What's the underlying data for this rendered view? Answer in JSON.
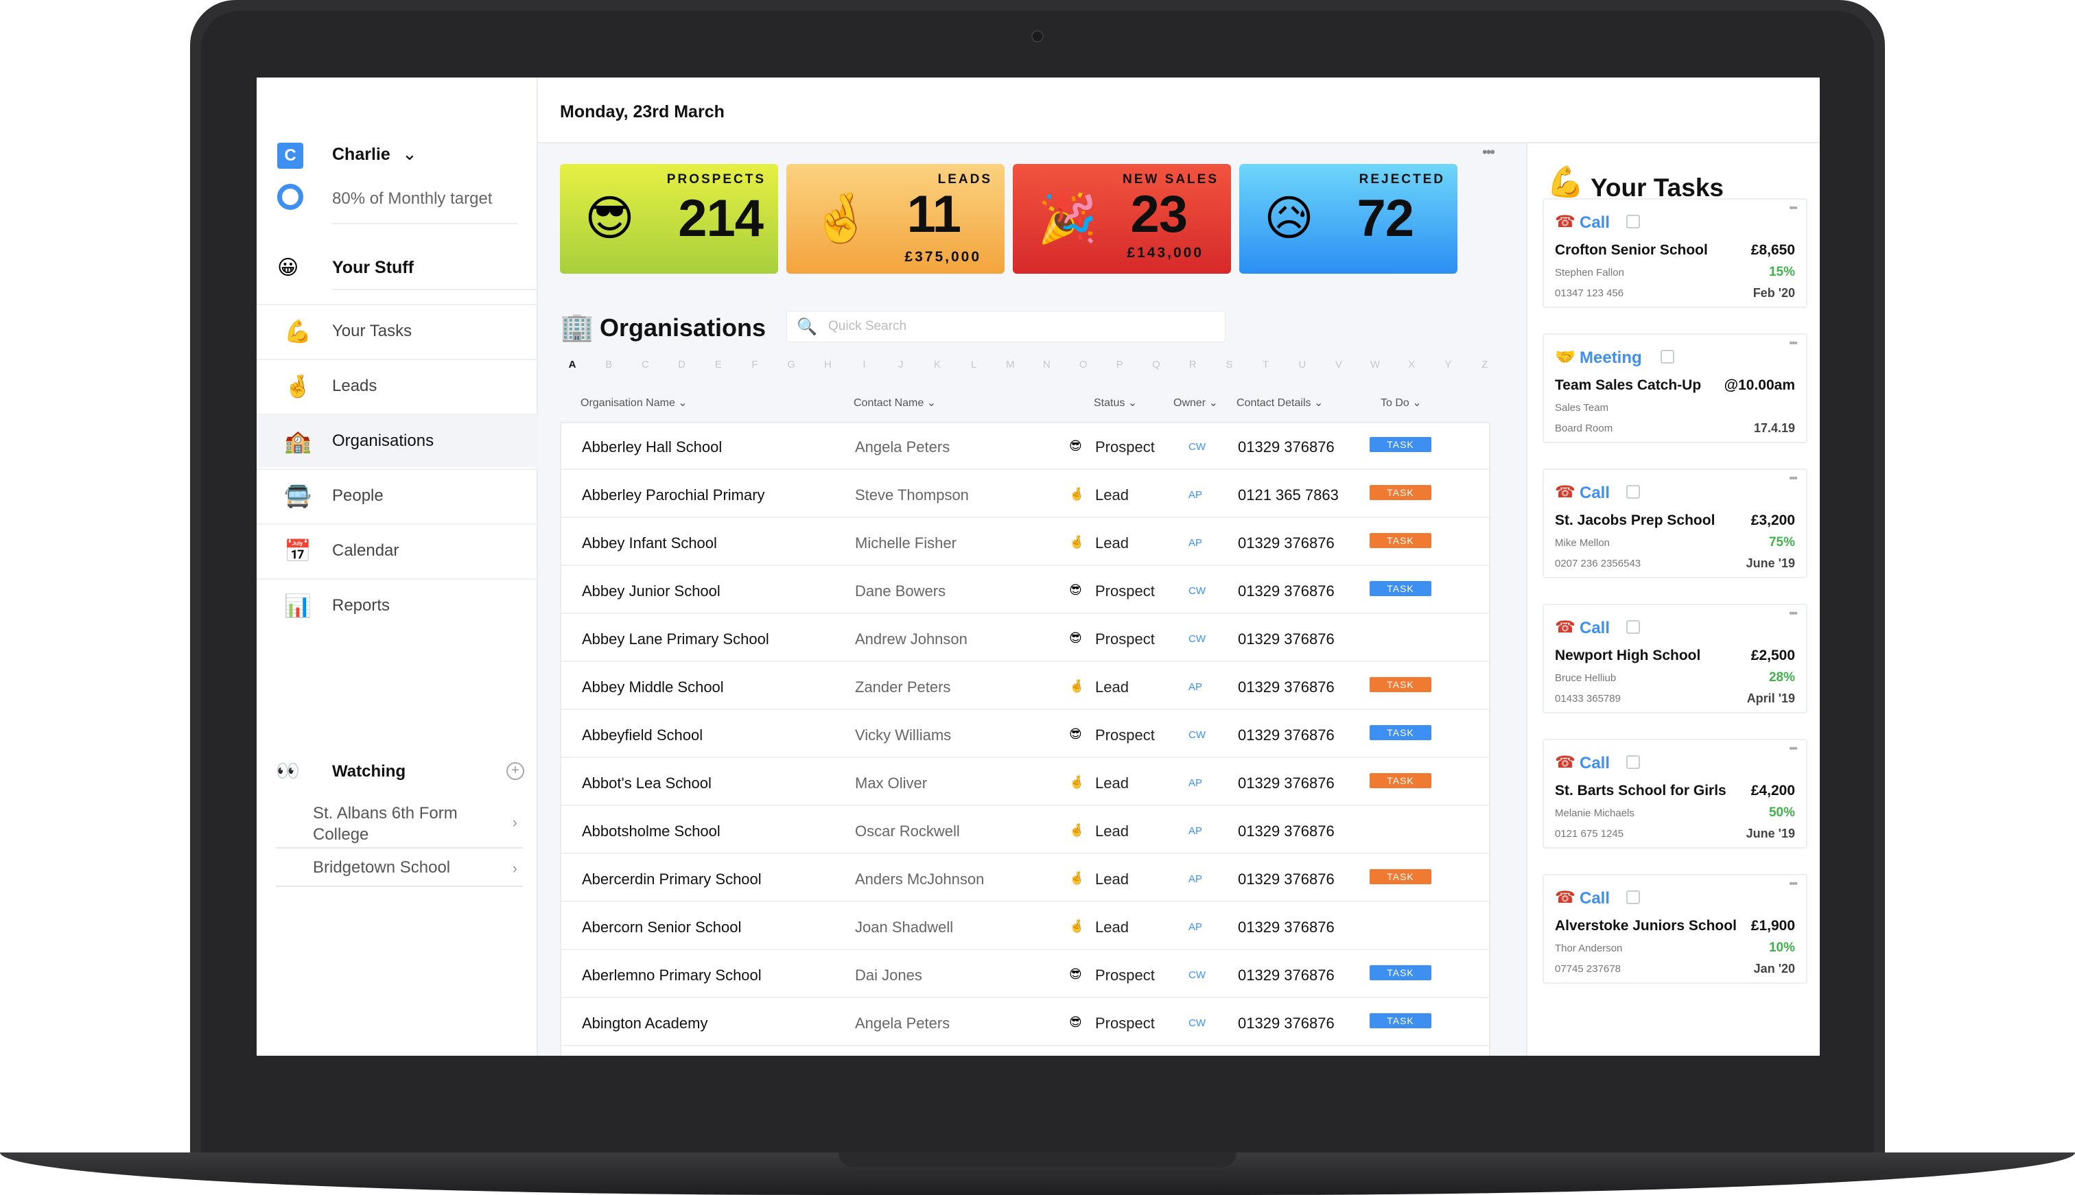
{
  "sidebar": {
    "user_initial": "C",
    "user_name": "Charlie",
    "target_text": "80% of Monthly target",
    "your_stuff": "Your Stuff",
    "nav": [
      {
        "label": "Your Tasks",
        "icon": "flexed-biceps-icon",
        "glyph": "💪"
      },
      {
        "label": "Leads",
        "icon": "crossed-fingers-icon",
        "glyph": "🤞"
      },
      {
        "label": "Organisations",
        "icon": "school-icon",
        "glyph": "🏫"
      },
      {
        "label": "People",
        "icon": "people-icon",
        "glyph": "🚍"
      },
      {
        "label": "Calendar",
        "icon": "calendar-icon",
        "glyph": "📅"
      },
      {
        "label": "Reports",
        "icon": "bar-chart-icon",
        "glyph": "📊"
      }
    ],
    "active_nav": "Organisations",
    "watching_label": "Watching",
    "watching_items": [
      "St. Albans 6th Form College",
      "Bridgetown School"
    ]
  },
  "header": {
    "date": "Monday, 23rd March"
  },
  "stats": {
    "prospects": {
      "title": "PROSPECTS",
      "value": "214",
      "sub": ""
    },
    "leads": {
      "title": "LEADS",
      "value": "11",
      "sub": "£375,000"
    },
    "new_sales": {
      "title": "NEW SALES",
      "value": "23",
      "sub": "£143,000"
    },
    "rejected": {
      "title": "REJECTED",
      "value": "72",
      "sub": ""
    }
  },
  "organisations": {
    "title": "Organisations",
    "search_placeholder": "Quick Search",
    "alphabet": [
      "A",
      "B",
      "C",
      "D",
      "E",
      "F",
      "G",
      "H",
      "I",
      "J",
      "K",
      "L",
      "M",
      "N",
      "O",
      "P",
      "Q",
      "R",
      "S",
      "T",
      "U",
      "V",
      "W",
      "X",
      "Y",
      "Z"
    ],
    "selected_letter": "A",
    "columns": {
      "org": "Organisation Name",
      "contact": "Contact Name",
      "status": "Status",
      "owner": "Owner",
      "details": "Contact Details",
      "todo": "To Do"
    },
    "task_label": "TASK",
    "rows": [
      {
        "org": "Abberley Hall School",
        "contact": "Angela Peters",
        "status": "Prospect",
        "owner": "CW",
        "phone": "01329 376876",
        "task": "blue"
      },
      {
        "org": "Abberley Parochial Primary",
        "contact": "Steve Thompson",
        "status": "Lead",
        "owner": "AP",
        "phone": "0121 365 7863",
        "task": "orange"
      },
      {
        "org": "Abbey Infant School",
        "contact": "Michelle Fisher",
        "status": "Lead",
        "owner": "AP",
        "phone": "01329 376876",
        "task": "orange"
      },
      {
        "org": "Abbey Junior School",
        "contact": "Dane Bowers",
        "status": "Prospect",
        "owner": "CW",
        "phone": "01329 376876",
        "task": "blue"
      },
      {
        "org": "Abbey Lane Primary School",
        "contact": "Andrew Johnson",
        "status": "Prospect",
        "owner": "CW",
        "phone": "01329 376876",
        "task": ""
      },
      {
        "org": "Abbey Middle School",
        "contact": "Zander Peters",
        "status": "Lead",
        "owner": "AP",
        "phone": "01329 376876",
        "task": "orange"
      },
      {
        "org": "Abbeyfield School",
        "contact": "Vicky Williams",
        "status": "Prospect",
        "owner": "CW",
        "phone": "01329 376876",
        "task": "blue"
      },
      {
        "org": "Abbot's Lea School",
        "contact": "Max Oliver",
        "status": "Lead",
        "owner": "AP",
        "phone": "01329 376876",
        "task": "orange"
      },
      {
        "org": "Abbotsholme School",
        "contact": "Oscar Rockwell",
        "status": "Lead",
        "owner": "AP",
        "phone": "01329 376876",
        "task": ""
      },
      {
        "org": "Abercerdin Primary School",
        "contact": "Anders McJohnson",
        "status": "Lead",
        "owner": "AP",
        "phone": "01329 376876",
        "task": "orange"
      },
      {
        "org": "Abercorn Senior School",
        "contact": "Joan Shadwell",
        "status": "Lead",
        "owner": "AP",
        "phone": "01329 376876",
        "task": ""
      },
      {
        "org": "Aberlemno Primary School",
        "contact": "Dai Jones",
        "status": "Prospect",
        "owner": "CW",
        "phone": "01329 376876",
        "task": "blue"
      },
      {
        "org": "Abington Academy",
        "contact": "Angela Peters",
        "status": "Prospect",
        "owner": "CW",
        "phone": "01329 376876",
        "task": "blue"
      }
    ]
  },
  "tasks": {
    "title": "Your Tasks",
    "items": [
      {
        "type": "Call",
        "icon": "telephone-icon",
        "org": "Crofton Senior School",
        "value": "£8,650",
        "person": "Stephen Fallon",
        "pct": "15%",
        "phone": "01347 123 456",
        "date": "Feb '20"
      },
      {
        "type": "Meeting",
        "icon": "handshake-icon",
        "org": "Team Sales Catch-Up",
        "value": "@10.00am",
        "person": "Sales Team",
        "pct": "",
        "phone": "Board Room",
        "date": "17.4.19"
      },
      {
        "type": "Call",
        "icon": "telephone-icon",
        "org": "St. Jacobs Prep School",
        "value": "£3,200",
        "person": "Mike Mellon",
        "pct": "75%",
        "phone": "0207 236 2356543",
        "date": "June '19"
      },
      {
        "type": "Call",
        "icon": "telephone-icon",
        "org": "Newport High School",
        "value": "£2,500",
        "person": "Bruce Helliub",
        "pct": "28%",
        "phone": "01433 365789",
        "date": "April '19"
      },
      {
        "type": "Call",
        "icon": "telephone-icon",
        "org": "St. Barts School for Girls",
        "value": "£4,200",
        "person": "Melanie Michaels",
        "pct": "50%",
        "phone": "0121 675 1245",
        "date": "June '19"
      },
      {
        "type": "Call",
        "icon": "telephone-icon",
        "org": "Alverstoke Juniors School",
        "value": "£1,900",
        "person": "Thor Anderson",
        "pct": "10%",
        "phone": "07745 237678",
        "date": "Jan '20"
      }
    ]
  },
  "colors": {
    "accent": "#3d8ff2",
    "task_orange": "#f07a31",
    "positive": "#3fb24a"
  }
}
